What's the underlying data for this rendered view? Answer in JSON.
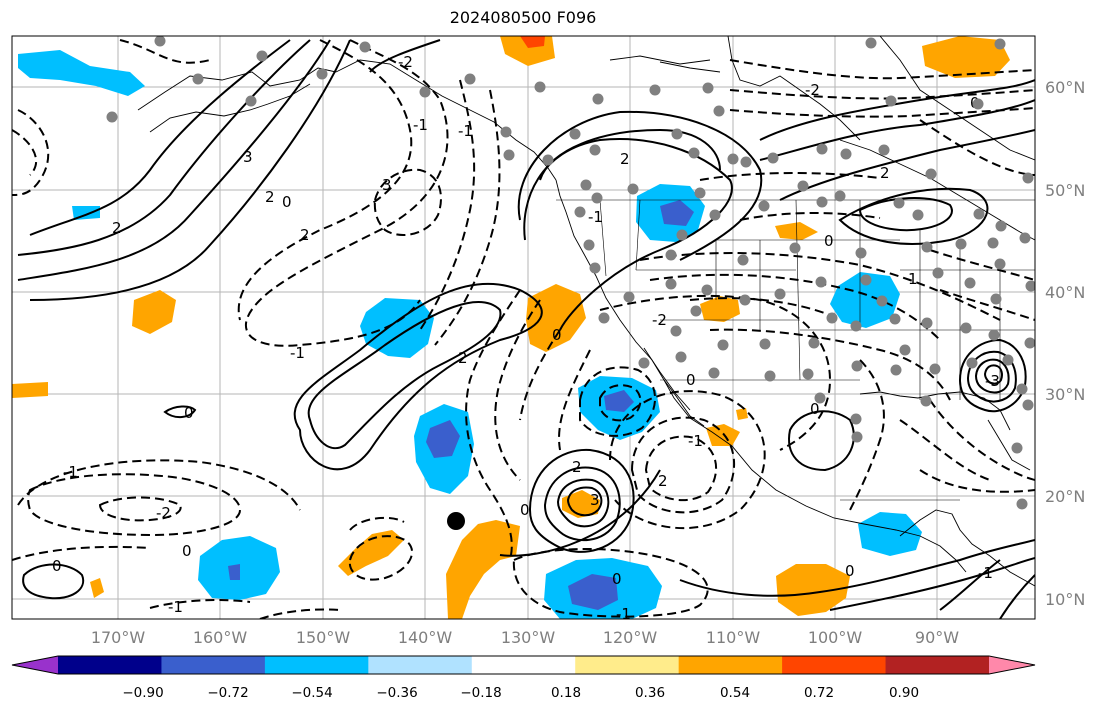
{
  "title": "2024080500 F096",
  "map": {
    "lon_labels": [
      "170°W",
      "160°W",
      "150°W",
      "140°W",
      "130°W",
      "120°W",
      "110°W",
      "100°W",
      "90°W"
    ],
    "lat_labels": [
      "60°N",
      "50°N",
      "40°N",
      "30°N",
      "20°N",
      "10°N"
    ],
    "contour_labels": [
      "3",
      "2",
      "2",
      "0",
      "-1",
      "2",
      "3",
      "-2",
      "-1",
      "-1",
      "2",
      "0",
      "2",
      "-1",
      "-2",
      "0",
      "0",
      "-1",
      "2",
      "3",
      "0",
      "-2",
      "-1",
      "0",
      "0",
      "2",
      "1",
      "0",
      "-1",
      "0",
      "0",
      "-1",
      "-3",
      "2",
      "0",
      "0",
      "-2",
      "-1"
    ]
  },
  "colorbar": {
    "tick_labels": [
      "−0.90",
      "−0.72",
      "−0.54",
      "−0.36",
      "−0.18",
      "0.18",
      "0.36",
      "0.54",
      "0.72",
      "0.90"
    ],
    "colors": [
      "#9932cc",
      "#00008b",
      "#3a5fcd",
      "#00bfff",
      "#b0e2ff",
      "#ffffff",
      "#ffec8b",
      "#ffa500",
      "#ff4500",
      "#b22222",
      "#ff88aa"
    ]
  }
}
